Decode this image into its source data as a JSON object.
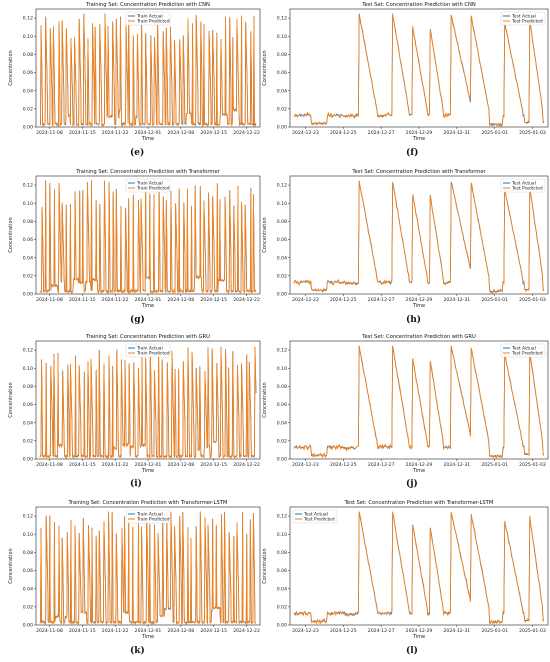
{
  "colors": {
    "actual": "#1f77b4",
    "predicted": "#ff7f0e"
  },
  "chart_data": [
    {
      "type": "line",
      "panel_label": "(e)",
      "title": "Training Set: Concentration Prediction with CNN",
      "xlabel": "Time",
      "ylabel": "Concentration",
      "xticks": [
        "2024-11-08",
        "2024-11-15",
        "2024-11-22",
        "2024-12-01",
        "2024-12-08",
        "2024-12-15",
        "2024-12-22"
      ],
      "yticks": [
        "0.00",
        "0.02",
        "0.04",
        "0.06",
        "0.08",
        "0.10",
        "0.12"
      ],
      "ylim": [
        0,
        0.13
      ],
      "legend": [
        "Train Actual",
        "Train Predicted"
      ],
      "legend_position": "top-center",
      "spikes": 52,
      "seed": 11
    },
    {
      "type": "line",
      "panel_label": "(f)",
      "title": "Test Set: Concentration Prediction with CNN",
      "xlabel": "Time",
      "ylabel": "Concentration",
      "xticks": [
        "2024-12-23",
        "2024-12-25",
        "2024-12-27",
        "2024-12-29",
        "2024-12-31",
        "2025-01-01",
        "2025-01-03"
      ],
      "yticks": [
        "0.00",
        "0.02",
        "0.04",
        "0.06",
        "0.08",
        "0.10",
        "0.12"
      ],
      "ylim": [
        0,
        0.13
      ],
      "legend": [
        "Test Actual",
        "Test Predicted"
      ],
      "legend_position": "top-right",
      "seed": 21
    },
    {
      "type": "line",
      "panel_label": "(g)",
      "title": "Training Set: Concentration Prediction with Transformer",
      "xlabel": "Time",
      "ylabel": "Concentration",
      "xticks": [
        "2024-11-08",
        "2024-11-15",
        "2024-11-22",
        "2024-12-01",
        "2024-12-08",
        "2024-12-15",
        "2024-12-22"
      ],
      "yticks": [
        "0.00",
        "0.02",
        "0.04",
        "0.06",
        "0.08",
        "0.10",
        "0.12"
      ],
      "ylim": [
        0,
        0.13
      ],
      "legend": [
        "Train Actual",
        "Train Predicted"
      ],
      "legend_position": "top-center",
      "spikes": 52,
      "seed": 31
    },
    {
      "type": "line",
      "panel_label": "(h)",
      "title": "Test Set: Concentration Prediction with Transformer",
      "xlabel": "Time",
      "ylabel": "Concentration",
      "xticks": [
        "2024-12-23",
        "2024-12-25",
        "2024-12-27",
        "2024-12-29",
        "2024-12-31",
        "2025-01-01",
        "2025-01-03"
      ],
      "yticks": [
        "0.00",
        "0.02",
        "0.04",
        "0.06",
        "0.08",
        "0.10",
        "0.12"
      ],
      "ylim": [
        0,
        0.13
      ],
      "legend": [
        "Test Actual",
        "Test Predicted"
      ],
      "legend_position": "top-right",
      "seed": 41
    },
    {
      "type": "line",
      "panel_label": "(i)",
      "title": "Training Set: Concentration Prediction with GRU",
      "xlabel": "Time",
      "ylabel": "Concentration",
      "xticks": [
        "2024-11-08",
        "2024-11-15",
        "2024-11-22",
        "2024-12-01",
        "2024-12-08",
        "2024-12-15",
        "2024-12-22"
      ],
      "yticks": [
        "0.00",
        "0.02",
        "0.04",
        "0.06",
        "0.08",
        "0.10",
        "0.12"
      ],
      "ylim": [
        0,
        0.13
      ],
      "legend": [
        "Train Actual",
        "Train Predicted"
      ],
      "legend_position": "top-center",
      "spikes": 52,
      "seed": 51
    },
    {
      "type": "line",
      "panel_label": "(j)",
      "title": "Test Set: Concentration Prediction with GRU",
      "xlabel": "Time",
      "ylabel": "Concentration",
      "xticks": [
        "2024-12-23",
        "2024-12-25",
        "2024-12-27",
        "2024-12-29",
        "2024-12-31",
        "2025-01-01",
        "2025-01-03"
      ],
      "yticks": [
        "0.00",
        "0.02",
        "0.04",
        "0.06",
        "0.08",
        "0.10",
        "0.12"
      ],
      "ylim": [
        0,
        0.13
      ],
      "legend": [
        "Test Actual",
        "Test Predicted"
      ],
      "legend_position": "top-right",
      "seed": 61
    },
    {
      "type": "line",
      "panel_label": "(k)",
      "title": "Training Set: Concentration Prediction with Transformer-LSTM",
      "xlabel": "Time",
      "ylabel": "Concentration",
      "xticks": [
        "2024-11-08",
        "2024-11-15",
        "2024-11-22",
        "2024-12-01",
        "2024-12-08",
        "2024-12-15",
        "2024-12-22"
      ],
      "yticks": [
        "0.00",
        "0.02",
        "0.04",
        "0.06",
        "0.08",
        "0.10",
        "0.12"
      ],
      "ylim": [
        0,
        0.13
      ],
      "legend": [
        "Train Actual",
        "Train Predicted"
      ],
      "legend_position": "top-center",
      "spikes": 52,
      "seed": 71
    },
    {
      "type": "line",
      "panel_label": "(l)",
      "title": "Test Set: Concentration Prediction with Transformer-LSTM",
      "xlabel": "Time",
      "ylabel": "Concentration",
      "xticks": [
        "2024-12-23",
        "2024-12-25",
        "2024-12-27",
        "2024-12-29",
        "2024-12-31",
        "2025-01-01",
        "2025-01-03"
      ],
      "yticks": [
        "0.00",
        "0.02",
        "0.04",
        "0.06",
        "0.08",
        "0.10",
        "0.12"
      ],
      "ylim": [
        0,
        0.13
      ],
      "legend": [
        "Test Actual",
        "Test Predicted"
      ],
      "legend_position": "top-left",
      "seed": 81
    }
  ]
}
